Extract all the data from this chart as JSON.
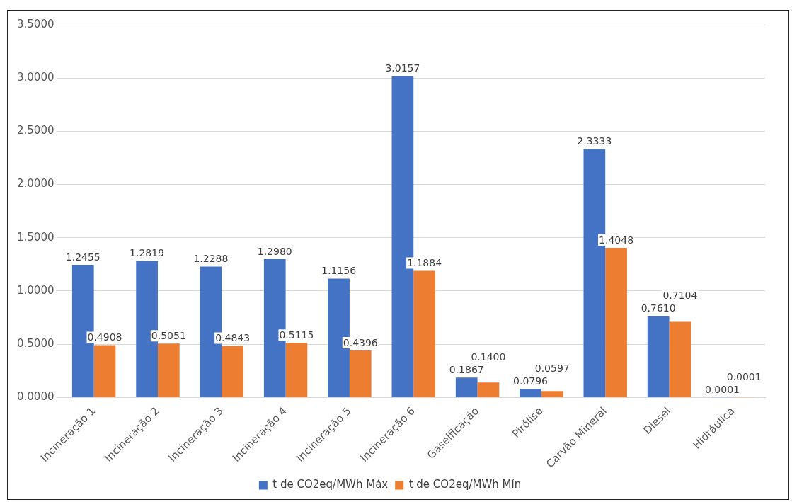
{
  "chart_data": {
    "type": "bar",
    "categories": [
      "Incineração 1",
      "Incineração 2",
      "Incineração 3",
      "Incineração 4",
      "Incineração 5",
      "Incineração 6",
      "Gaseificação",
      "Pirólise",
      "Carvão Mineral",
      "Diesel",
      "Hidráulica"
    ],
    "series": [
      {
        "name": "t de CO2eq/MWh Máx",
        "color": "#4472c4",
        "values": [
          1.2455,
          1.2819,
          1.2288,
          1.298,
          1.1156,
          3.0157,
          0.1867,
          0.0796,
          2.3333,
          0.761,
          0.0001
        ],
        "value_labels": [
          "1.2455",
          "1.2819",
          "1.2288",
          "1.2980",
          "1.1156",
          "3.0157",
          "0.1867",
          "0.0796",
          "2.3333",
          "0.7610",
          "0.0001"
        ]
      },
      {
        "name": "t de CO2eq/MWh Mín",
        "color": "#ed7d31",
        "values": [
          0.4908,
          0.5051,
          0.4843,
          0.5115,
          0.4396,
          1.1884,
          0.14,
          0.0597,
          1.4048,
          0.7104,
          0.0001
        ],
        "value_labels": [
          "0.4908",
          "0.5051",
          "0.4843",
          "0.5115",
          "0.4396",
          "1.1884",
          "0.1400",
          "0.0597",
          "1.4048",
          "0.7104",
          "0.0001"
        ]
      }
    ],
    "ylim": [
      0,
      3.5
    ],
    "yticks": [
      {
        "value": 0,
        "label": "0.0000"
      },
      {
        "value": 0.5,
        "label": "0.5000"
      },
      {
        "value": 1,
        "label": "1.0000"
      },
      {
        "value": 1.5,
        "label": "1.5000"
      },
      {
        "value": 2,
        "label": "2.0000"
      },
      {
        "value": 2.5,
        "label": "2.5000"
      },
      {
        "value": 3,
        "label": "3.0000"
      },
      {
        "value": 3.5,
        "label": "3.5000"
      }
    ],
    "grid": "y",
    "legend": "bottom"
  }
}
